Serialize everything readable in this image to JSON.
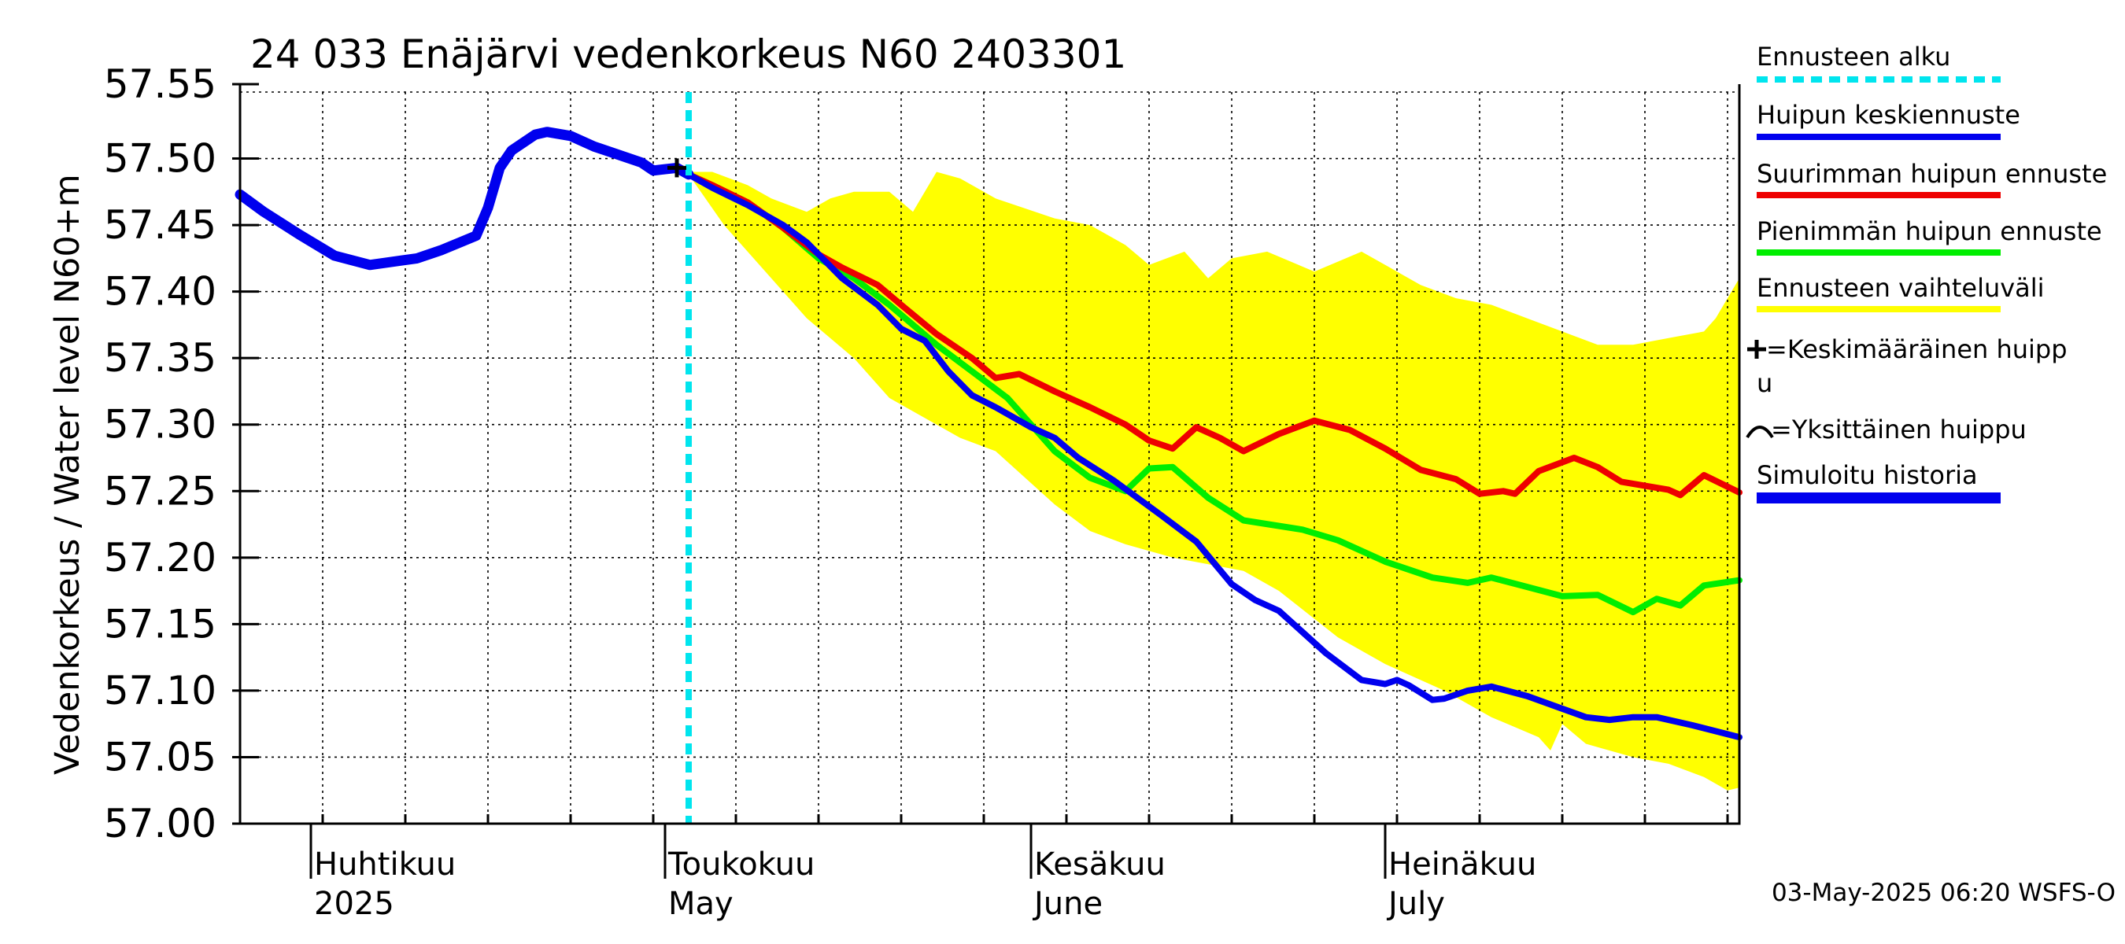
{
  "chart_data": {
    "type": "line",
    "title": "24 033 Enäjärvi vedenkorkeus N60 2403301",
    "ylabel": "Vedenkorkeus / Water level   N60+m",
    "ylim": [
      57.0,
      57.55
    ],
    "yticks": [
      "57.55",
      "57.50",
      "57.45",
      "57.40",
      "57.35",
      "57.30",
      "57.25",
      "57.20",
      "57.15",
      "57.10",
      "57.05",
      "57.00"
    ],
    "x_range": [
      "2025-03-26",
      "2025-07-31"
    ],
    "grid": true,
    "legend_position": "right",
    "months": [
      {
        "fi": "Huhtikuu",
        "en": "2025",
        "date": "2025-04-01"
      },
      {
        "fi": "Toukokuu",
        "en": "May",
        "date": "2025-05-01"
      },
      {
        "fi": "Kesäkuu",
        "en": "June",
        "date": "2025-06-01"
      },
      {
        "fi": "Heinäkuu",
        "en": "July",
        "date": "2025-07-01"
      }
    ],
    "forecast_start": "2025-05-03",
    "legend": [
      {
        "label": "Ennusteen alku",
        "color": "#00e5ee",
        "style": "dashed"
      },
      {
        "label": "Huipun keskiennuste",
        "color": "#0000ee",
        "style": "line"
      },
      {
        "label": "Suurimman huipun ennuste",
        "color": "#ee0000",
        "style": "line"
      },
      {
        "label": "Pienimmän huipun ennuste",
        "color": "#00ee00",
        "style": "line"
      },
      {
        "label": "Ennusteen vaihteluväli",
        "color": "#ffff00",
        "style": "line"
      },
      {
        "label": "=Keskimääräinen huipp\nu",
        "symbol": "plus"
      },
      {
        "label": "=Yksittäinen huippu",
        "symbol": "arc"
      },
      {
        "label": "Simuloitu historia",
        "color": "#0000ee",
        "style": "thick"
      }
    ],
    "mean_peak": {
      "x": "2025-05-02",
      "y": 57.493
    },
    "series": [
      {
        "key": "history",
        "color": "#0000ee",
        "points": [
          [
            "2025-03-26",
            57.473
          ],
          [
            "2025-03-28",
            57.46
          ],
          [
            "2025-03-31",
            57.443
          ],
          [
            "2025-04-03",
            57.427
          ],
          [
            "2025-04-06",
            57.42
          ],
          [
            "2025-04-10",
            57.425
          ],
          [
            "2025-04-12",
            57.431
          ],
          [
            "2025-04-15",
            57.442
          ],
          [
            "2025-04-16",
            57.463
          ],
          [
            "2025-04-17",
            57.493
          ],
          [
            "2025-04-18",
            57.506
          ],
          [
            "2025-04-20",
            57.518
          ],
          [
            "2025-04-21",
            57.52
          ],
          [
            "2025-04-23",
            57.517
          ],
          [
            "2025-04-25",
            57.509
          ],
          [
            "2025-04-29",
            57.497
          ],
          [
            "2025-04-30",
            57.491
          ],
          [
            "2025-05-01",
            57.492
          ],
          [
            "2025-05-02",
            57.493
          ],
          [
            "2025-05-03",
            57.488
          ]
        ]
      },
      {
        "key": "band",
        "color": "#ffff00",
        "upper": [
          [
            "2025-05-03",
            57.49
          ],
          [
            "2025-05-05",
            57.49
          ],
          [
            "2025-05-08",
            57.48
          ],
          [
            "2025-05-10",
            57.47
          ],
          [
            "2025-05-13",
            57.46
          ],
          [
            "2025-05-15",
            57.47
          ],
          [
            "2025-05-17",
            57.475
          ],
          [
            "2025-05-20",
            57.475
          ],
          [
            "2025-05-22",
            57.46
          ],
          [
            "2025-05-24",
            57.49
          ],
          [
            "2025-05-26",
            57.485
          ],
          [
            "2025-05-29",
            57.47
          ],
          [
            "2025-06-03",
            57.455
          ],
          [
            "2025-06-06",
            57.45
          ],
          [
            "2025-06-09",
            57.435
          ],
          [
            "2025-06-11",
            57.42
          ],
          [
            "2025-06-14",
            57.43
          ],
          [
            "2025-06-16",
            57.41
          ],
          [
            "2025-06-18",
            57.425
          ],
          [
            "2025-06-21",
            57.43
          ],
          [
            "2025-06-25",
            57.415
          ],
          [
            "2025-06-29",
            57.43
          ],
          [
            "2025-07-01",
            57.42
          ],
          [
            "2025-07-04",
            57.405
          ],
          [
            "2025-07-07",
            57.395
          ],
          [
            "2025-07-10",
            57.39
          ],
          [
            "2025-07-13",
            57.38
          ],
          [
            "2025-07-16",
            57.37
          ],
          [
            "2025-07-19",
            57.36
          ],
          [
            "2025-07-22",
            57.36
          ],
          [
            "2025-07-25",
            57.365
          ],
          [
            "2025-07-28",
            57.37
          ],
          [
            "2025-07-29",
            57.38
          ],
          [
            "2025-07-31",
            57.41
          ]
        ],
        "lower": [
          [
            "2025-07-31",
            57.027
          ],
          [
            "2025-07-30",
            57.025
          ],
          [
            "2025-07-28",
            57.035
          ],
          [
            "2025-07-25",
            57.045
          ],
          [
            "2025-07-22",
            57.05
          ],
          [
            "2025-07-20",
            57.055
          ],
          [
            "2025-07-18",
            57.06
          ],
          [
            "2025-07-16",
            57.075
          ],
          [
            "2025-07-15",
            57.055
          ],
          [
            "2025-07-14",
            57.065
          ],
          [
            "2025-07-10",
            57.08
          ],
          [
            "2025-07-06",
            57.1
          ],
          [
            "2025-07-01",
            57.12
          ],
          [
            "2025-06-27",
            57.14
          ],
          [
            "2025-06-22",
            57.175
          ],
          [
            "2025-06-19",
            57.19
          ],
          [
            "2025-06-13",
            57.2
          ],
          [
            "2025-06-09",
            57.21
          ],
          [
            "2025-06-06",
            57.22
          ],
          [
            "2025-06-03",
            57.24
          ],
          [
            "2025-05-29",
            57.28
          ],
          [
            "2025-05-26",
            57.29
          ],
          [
            "2025-05-24",
            57.3
          ],
          [
            "2025-05-20",
            57.32
          ],
          [
            "2025-05-17",
            57.35
          ],
          [
            "2025-05-13",
            57.38
          ],
          [
            "2025-05-10",
            57.41
          ],
          [
            "2025-05-06",
            57.45
          ],
          [
            "2025-05-03",
            57.488
          ]
        ]
      },
      {
        "key": "min_peak",
        "color": "#00ee00",
        "points": [
          [
            "2025-05-03",
            57.488
          ],
          [
            "2025-05-05",
            57.48
          ],
          [
            "2025-05-08",
            57.467
          ],
          [
            "2025-05-11",
            57.448
          ],
          [
            "2025-05-14",
            57.425
          ],
          [
            "2025-05-17",
            57.41
          ],
          [
            "2025-05-20",
            57.39
          ],
          [
            "2025-05-24",
            57.36
          ],
          [
            "2025-05-27",
            57.34
          ],
          [
            "2025-05-30",
            57.32
          ],
          [
            "2025-06-03",
            57.28
          ],
          [
            "2025-06-06",
            57.26
          ],
          [
            "2025-06-09",
            57.25
          ],
          [
            "2025-06-11",
            57.267
          ],
          [
            "2025-06-13",
            57.268
          ],
          [
            "2025-06-16",
            57.245
          ],
          [
            "2025-06-19",
            57.228
          ],
          [
            "2025-06-24",
            57.221
          ],
          [
            "2025-06-27",
            57.213
          ],
          [
            "2025-07-01",
            57.197
          ],
          [
            "2025-07-05",
            57.185
          ],
          [
            "2025-07-08",
            57.181
          ],
          [
            "2025-07-10",
            57.185
          ],
          [
            "2025-07-13",
            57.178
          ],
          [
            "2025-07-16",
            57.171
          ],
          [
            "2025-07-19",
            57.172
          ],
          [
            "2025-07-22",
            57.159
          ],
          [
            "2025-07-24",
            57.169
          ],
          [
            "2025-07-26",
            57.164
          ],
          [
            "2025-07-28",
            57.179
          ],
          [
            "2025-07-31",
            57.183
          ]
        ]
      },
      {
        "key": "max_peak",
        "color": "#ee0000",
        "points": [
          [
            "2025-05-03",
            57.488
          ],
          [
            "2025-05-05",
            57.48
          ],
          [
            "2025-05-08",
            57.467
          ],
          [
            "2025-05-11",
            57.448
          ],
          [
            "2025-05-14",
            57.428
          ],
          [
            "2025-05-16",
            57.418
          ],
          [
            "2025-05-19",
            57.405
          ],
          [
            "2025-05-21",
            57.39
          ],
          [
            "2025-05-24",
            57.368
          ],
          [
            "2025-05-27",
            57.35
          ],
          [
            "2025-05-29",
            57.335
          ],
          [
            "2025-05-31",
            57.338
          ],
          [
            "2025-06-03",
            57.325
          ],
          [
            "2025-06-06",
            57.313
          ],
          [
            "2025-06-09",
            57.3
          ],
          [
            "2025-06-11",
            57.288
          ],
          [
            "2025-06-13",
            57.282
          ],
          [
            "2025-06-15",
            57.298
          ],
          [
            "2025-06-17",
            57.29
          ],
          [
            "2025-06-19",
            57.28
          ],
          [
            "2025-06-22",
            57.293
          ],
          [
            "2025-06-25",
            57.303
          ],
          [
            "2025-06-28",
            57.296
          ],
          [
            "2025-07-01",
            57.282
          ],
          [
            "2025-07-04",
            57.266
          ],
          [
            "2025-07-07",
            57.259
          ],
          [
            "2025-07-09",
            57.248
          ],
          [
            "2025-07-11",
            57.25
          ],
          [
            "2025-07-12",
            57.248
          ],
          [
            "2025-07-14",
            57.265
          ],
          [
            "2025-07-17",
            57.275
          ],
          [
            "2025-07-19",
            57.268
          ],
          [
            "2025-07-21",
            57.257
          ],
          [
            "2025-07-25",
            57.251
          ],
          [
            "2025-07-26",
            57.247
          ],
          [
            "2025-07-28",
            57.262
          ],
          [
            "2025-07-31",
            57.249
          ]
        ]
      },
      {
        "key": "mean_peak_forecast",
        "color": "#0000ee",
        "points": [
          [
            "2025-05-03",
            57.488
          ],
          [
            "2025-05-05",
            57.478
          ],
          [
            "2025-05-08",
            57.465
          ],
          [
            "2025-05-11",
            57.45
          ],
          [
            "2025-05-13",
            57.437
          ],
          [
            "2025-05-16",
            57.41
          ],
          [
            "2025-05-19",
            57.39
          ],
          [
            "2025-05-21",
            57.372
          ],
          [
            "2025-05-23",
            57.363
          ],
          [
            "2025-05-25",
            57.34
          ],
          [
            "2025-05-27",
            57.322
          ],
          [
            "2025-05-29",
            57.313
          ],
          [
            "2025-06-01",
            57.298
          ],
          [
            "2025-06-03",
            57.29
          ],
          [
            "2025-06-05",
            57.275
          ],
          [
            "2025-06-08",
            57.258
          ],
          [
            "2025-06-10",
            57.245
          ],
          [
            "2025-06-12",
            57.232
          ],
          [
            "2025-06-15",
            57.212
          ],
          [
            "2025-06-18",
            57.18
          ],
          [
            "2025-06-20",
            57.168
          ],
          [
            "2025-06-22",
            57.16
          ],
          [
            "2025-06-26",
            57.128
          ],
          [
            "2025-06-29",
            57.108
          ],
          [
            "2025-07-01",
            57.105
          ],
          [
            "2025-07-02",
            57.108
          ],
          [
            "2025-07-03",
            57.104
          ],
          [
            "2025-07-05",
            57.093
          ],
          [
            "2025-07-06",
            57.094
          ],
          [
            "2025-07-08",
            57.1
          ],
          [
            "2025-07-10",
            57.103
          ],
          [
            "2025-07-13",
            57.096
          ],
          [
            "2025-07-18",
            57.08
          ],
          [
            "2025-07-20",
            57.078
          ],
          [
            "2025-07-22",
            57.08
          ],
          [
            "2025-07-24",
            57.08
          ],
          [
            "2025-07-27",
            57.074
          ],
          [
            "2025-07-31",
            57.065
          ]
        ]
      }
    ]
  },
  "footer": {
    "timestamp": "03-May-2025 06:20 WSFS-O"
  }
}
